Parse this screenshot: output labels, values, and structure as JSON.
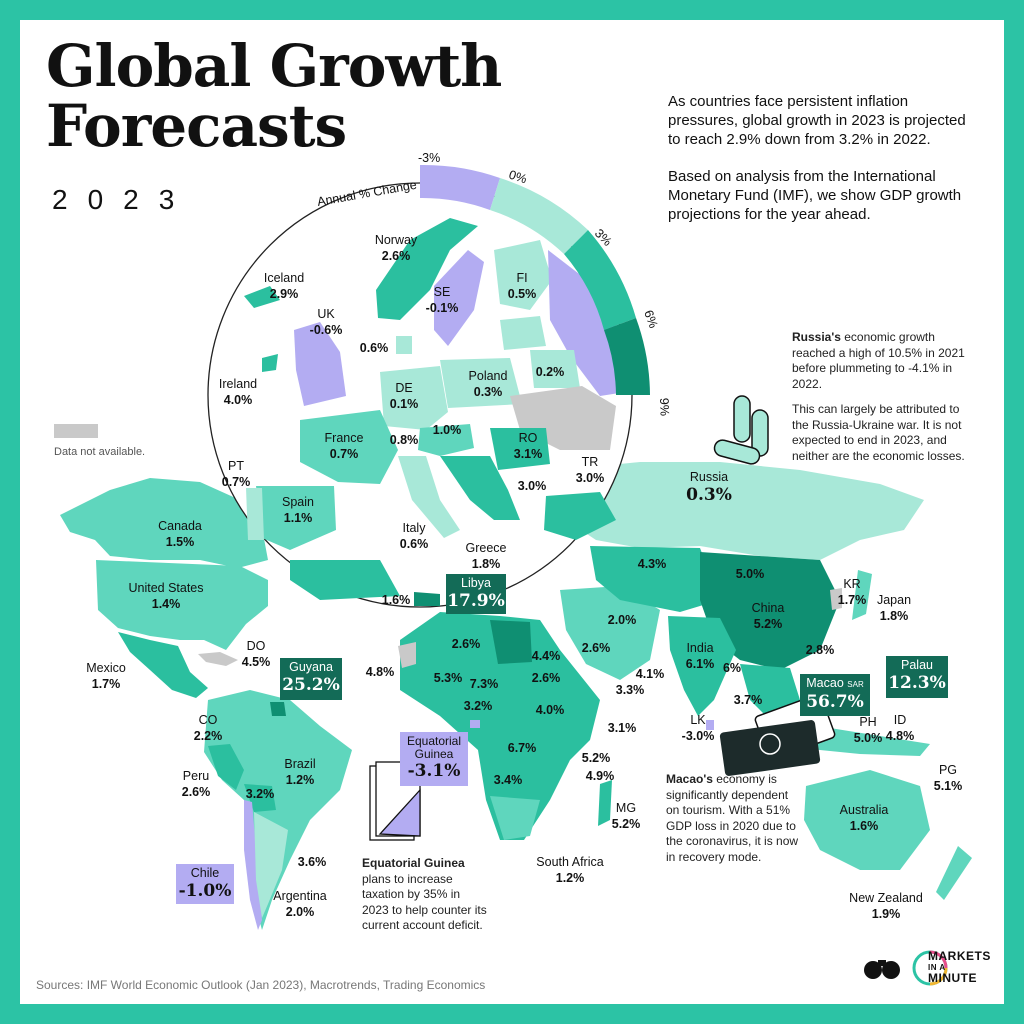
{
  "title_line1": "Global Growth",
  "title_line2": "Forecasts",
  "year": "2023",
  "intro_p1": "As countries face persistent inflation pressures, global growth in 2023 is projected to reach 2.9% down from 3.2% in 2022.",
  "intro_p2": "Based on analysis from the International Monetary Fund (IMF), we show GDP growth projections for the year ahead.",
  "legend": {
    "title": "Annual % Change",
    "ticks": [
      "-3%",
      "0%",
      "3%",
      "6%",
      "9%"
    ],
    "colors": [
      "#b3acf2",
      "#a8e8d8",
      "#2bbf9f",
      "#0f8f72"
    ]
  },
  "not_available": "Data not available.",
  "russia_note": {
    "name": "Russia's",
    "p1": " economic growth reached a high of 10.5% in 2021 before plummeting to -4.1% in 2022.",
    "p2": "This can largely be attributed to the Russia-Ukraine war. It is not expected to end in 2023, and neither are the economic losses."
  },
  "macao_note": {
    "name": "Macao's",
    "text": " economy is significantly dependent on tourism. With a 51% GDP loss in 2020 due to the coronavirus, it is now in recovery mode."
  },
  "eqg_note": {
    "name": "Equatorial Guinea",
    "text": " plans to increase taxation by 35% in 2023 to help counter its current account deficit."
  },
  "source": "Sources: IMF World Economic Outlook (Jan 2023), Macrotrends, Trading Economics",
  "brand": {
    "line1": "MARKETS",
    "line2": "IN A",
    "line3": "MINUTE"
  },
  "colors": {
    "border": "#2cc3a5",
    "negative": "#b3acf2",
    "low": "#a8e8d8",
    "mid": "#5fd6bd",
    "high": "#2bbf9f",
    "top": "#0f8f72",
    "callout_dark": "#136b57",
    "na": "#c9c9c9"
  },
  "europe_labels": [
    {
      "name": "Norway",
      "value": "2.6%"
    },
    {
      "name": "FI",
      "value": "0.5%"
    },
    {
      "name": "Iceland",
      "value": "2.9%"
    },
    {
      "name": "SE",
      "value": "-0.1%"
    },
    {
      "name": "UK",
      "value": "-0.6%"
    },
    {
      "name": "",
      "value": "0.6%"
    },
    {
      "name": "Poland",
      "value": "0.3%"
    },
    {
      "name": "",
      "value": "0.2%"
    },
    {
      "name": "Ireland",
      "value": "4.0%"
    },
    {
      "name": "DE",
      "value": "0.1%"
    },
    {
      "name": "France",
      "value": "0.7%"
    },
    {
      "name": "",
      "value": "0.8%"
    },
    {
      "name": "",
      "value": "1.0%"
    },
    {
      "name": "RO",
      "value": "3.1%"
    },
    {
      "name": "",
      "value": "3.0%"
    },
    {
      "name": "TR",
      "value": "3.0%"
    },
    {
      "name": "PT",
      "value": "0.7%"
    },
    {
      "name": "Spain",
      "value": "1.1%"
    },
    {
      "name": "Italy",
      "value": "0.6%"
    },
    {
      "name": "Greece",
      "value": "1.8%"
    },
    {
      "name": "",
      "value": "1.6%"
    }
  ],
  "world_labels": [
    {
      "name": "Canada",
      "value": "1.5%"
    },
    {
      "name": "United States",
      "value": "1.4%"
    },
    {
      "name": "Mexico",
      "value": "1.7%"
    },
    {
      "name": "DO",
      "value": "4.5%"
    },
    {
      "name": "CO",
      "value": "2.2%"
    },
    {
      "name": "Brazil",
      "value": "1.2%"
    },
    {
      "name": "Peru",
      "value": "2.6%"
    },
    {
      "name": "",
      "value": "3.2%"
    },
    {
      "name": "",
      "value": "3.6%"
    },
    {
      "name": "Argentina",
      "value": "2.0%"
    },
    {
      "name": "",
      "value": "2.6%"
    },
    {
      "name": "",
      "value": "4.8%"
    },
    {
      "name": "",
      "value": "5.3%"
    },
    {
      "name": "",
      "value": "7.3%"
    },
    {
      "name": "",
      "value": "3.2%"
    },
    {
      "name": "",
      "value": "4.4%"
    },
    {
      "name": "",
      "value": "2.6%"
    },
    {
      "name": "",
      "value": "4.0%"
    },
    {
      "name": "",
      "value": "6.7%"
    },
    {
      "name": "",
      "value": "3.4%"
    },
    {
      "name": "",
      "value": "5.2%"
    },
    {
      "name": "",
      "value": "4.9%"
    },
    {
      "name": "MG",
      "value": "5.2%"
    },
    {
      "name": "South Africa",
      "value": "1.2%"
    },
    {
      "name": "",
      "value": "2.0%"
    },
    {
      "name": "",
      "value": "2.6%"
    },
    {
      "name": "",
      "value": "4.1%"
    },
    {
      "name": "",
      "value": "3.3%"
    },
    {
      "name": "",
      "value": "3.1%"
    },
    {
      "name": "",
      "value": "4.3%"
    },
    {
      "name": "",
      "value": "5.0%"
    },
    {
      "name": "China",
      "value": "5.2%"
    },
    {
      "name": "India",
      "value": "6.1%"
    },
    {
      "name": "",
      "value": "6%"
    },
    {
      "name": "",
      "value": "3.7%"
    },
    {
      "name": "LK",
      "value": "-3.0%"
    },
    {
      "name": "KR",
      "value": "1.7%"
    },
    {
      "name": "Japan",
      "value": "1.8%"
    },
    {
      "name": "",
      "value": "2.8%"
    },
    {
      "name": "PH",
      "value": "5.0%"
    },
    {
      "name": "ID",
      "value": "4.8%"
    },
    {
      "name": "PG",
      "value": "5.1%"
    },
    {
      "name": "Australia",
      "value": "1.6%"
    },
    {
      "name": "New Zealand",
      "value": "1.9%"
    }
  ],
  "callouts": {
    "russia": {
      "name": "Russia",
      "value": "0.3%"
    },
    "libya": {
      "name": "Libya",
      "value": "17.9%"
    },
    "guyana": {
      "name": "Guyana",
      "value": "25.2%"
    },
    "palau": {
      "name": "Palau",
      "value": "12.3%"
    },
    "macao": {
      "name": "Macao",
      "suffix": "SAR",
      "value": "56.7%"
    },
    "eqg": {
      "name": "Equatorial Guinea",
      "value": "-3.1%"
    },
    "chile": {
      "name": "Chile",
      "value": "-1.0%"
    }
  }
}
